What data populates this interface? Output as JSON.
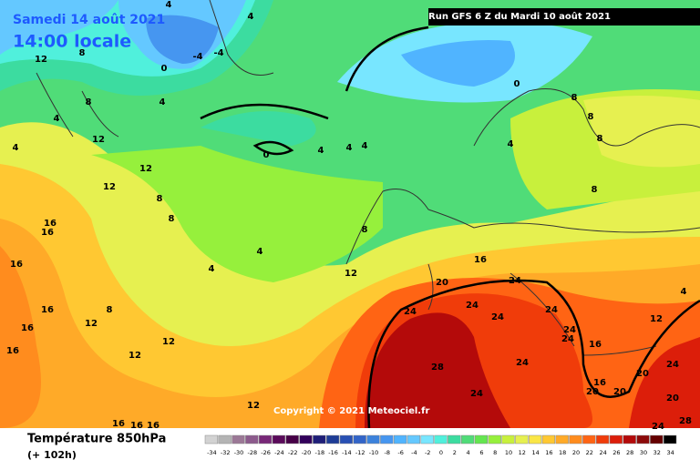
{
  "header": {
    "date": "Samedi 14 août 2021",
    "time": "14:00 locale",
    "run": "Run GFS 6 Z du Mardi 10 août 2021"
  },
  "copyright": "Copyright © 2021 Meteociel.fr",
  "legend": {
    "title": "Température 850hPa",
    "subtitle": "(+ 102h)",
    "values": [
      -34,
      -32,
      -30,
      -28,
      -26,
      -24,
      -22,
      -20,
      -18,
      -16,
      -14,
      -12,
      -10,
      -8,
      -6,
      -4,
      -2,
      0,
      2,
      4,
      6,
      8,
      10,
      12,
      14,
      16,
      18,
      20,
      22,
      24,
      26,
      28,
      30,
      32,
      34
    ],
    "colors": [
      "#d2d2d2",
      "#b4b4b4",
      "#9b7896",
      "#8c5a8c",
      "#782878",
      "#5a0a5a",
      "#460046",
      "#32005a",
      "#1e1e78",
      "#1e3c96",
      "#2850b4",
      "#3264c8",
      "#3c82dc",
      "#4696f0",
      "#50b4ff",
      "#64c8ff",
      "#78e6ff",
      "#50f0dc",
      "#3cdca0",
      "#50dc78",
      "#64e650",
      "#96f03c",
      "#c8f03c",
      "#e6f050",
      "#fae646",
      "#ffc832",
      "#ffaa28",
      "#ff8c1e",
      "#ff6414",
      "#f03c0a",
      "#dc1e0a",
      "#b40a0a",
      "#8c0a0a",
      "#640000",
      "#000000"
    ]
  },
  "contour_labels": [
    4,
    4,
    -4,
    -4,
    0,
    8,
    12,
    4,
    8,
    4,
    4,
    12,
    12,
    12,
    8,
    8,
    4,
    4,
    16,
    16,
    16,
    16,
    16,
    16,
    12,
    8,
    12,
    12,
    12,
    0,
    4,
    4,
    4,
    0,
    8,
    8,
    4,
    8,
    8,
    8,
    12,
    16,
    20,
    24,
    24,
    24,
    24,
    24,
    24,
    24,
    28,
    24,
    24,
    16,
    12,
    20,
    24,
    20,
    24,
    28,
    16,
    20,
    20,
    16,
    16,
    16,
    4
  ]
}
